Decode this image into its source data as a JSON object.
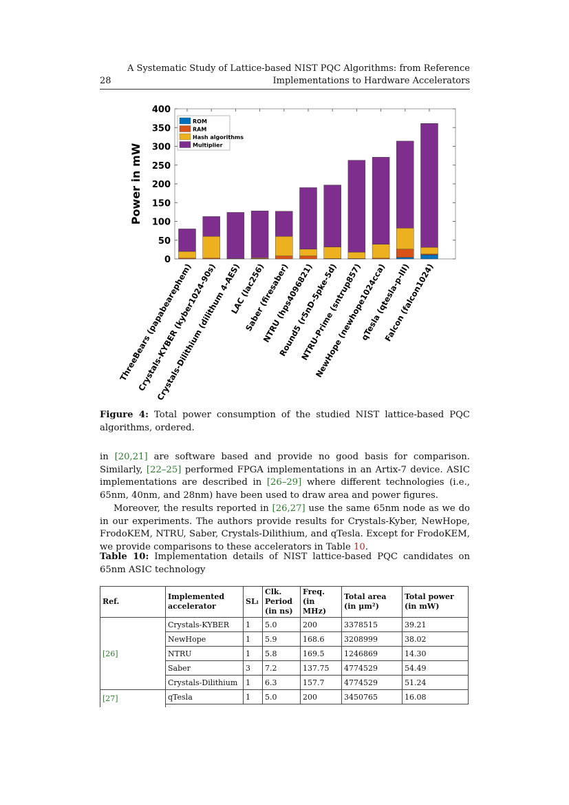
{
  "header": {
    "page_number": "28",
    "title_line1": "A Systematic Study of Lattice-based NIST PQC Algorithms: from Reference",
    "title_line2": "Implementations to Hardware Accelerators"
  },
  "chart_data": {
    "type": "bar",
    "stacked": true,
    "ylabel": "Power in mW",
    "ylim": [
      0,
      400
    ],
    "yticks": [
      0,
      50,
      100,
      150,
      200,
      250,
      300,
      350,
      400
    ],
    "legend_position": "top-left",
    "grid": false,
    "categories": [
      "ThreeBears (papabearephem)",
      "Crystals-KYBER (kyber1024-90s)",
      "Crystals-Dilithium (dilithum 4-AES)",
      "LAC (lac256)",
      "Saber (firesaber)",
      "NTRU (hps4096821)",
      "Round5 (r5nD-5pke-5d)",
      "NTRU-Prime (sntrup857)",
      "NewHope (newhope1024cca)",
      "qTesla (qtesla-p-III)",
      "Falcon (falcon1024)"
    ],
    "series": [
      {
        "name": "ROM",
        "color": "#0072BD",
        "values": [
          0,
          0,
          0,
          0,
          0,
          0,
          0,
          0,
          0,
          4,
          11
        ]
      },
      {
        "name": "RAM",
        "color": "#D95319",
        "values": [
          2,
          2,
          0,
          1,
          8,
          8,
          1,
          1,
          2,
          22,
          2
        ]
      },
      {
        "name": "Hash algorithms",
        "color": "#EDB120",
        "values": [
          18,
          58,
          1,
          2,
          52,
          18,
          31,
          17,
          37,
          56,
          18
        ]
      },
      {
        "name": "Multiplier",
        "color": "#7E2F8E",
        "values": [
          60,
          53,
          123,
          125,
          67,
          164,
          165,
          245,
          232,
          232,
          330
        ]
      }
    ]
  },
  "figure_caption": {
    "label": "Figure 4:",
    "text": " Total power consumption of the studied NIST lattice-based PQC algorithms, ordered."
  },
  "para1": {
    "t1": "in ",
    "c1": "[20,21]",
    "t2": " are software based and provide no good basis for comparison. Similarly, ",
    "c2": "[22–25]",
    "t3": " performed FPGA implementations in an Artix-7 device. ASIC implementations are described in ",
    "c3": "[26–29]",
    "t4": " where different technologies (i.e., 65nm, 40nm, and 28nm) have been used to draw area and power figures."
  },
  "para2": {
    "t1": "Moreover, the results reported in ",
    "c1": "[26,27]",
    "t2": " use the same 65nm node as we do in our experiments. The authors provide results for Crystals-Kyber, NewHope, FrodoKEM, NTRU, Saber, Crystals-Dilithium, and qTesla. Except for FrodoKEM, we provide comparisons to these accelerators in Table ",
    "c2": "10",
    "t3": "."
  },
  "table_caption": {
    "label": "Table 10:",
    "text": " Implementation details of NIST lattice-based PQC candidates on 65nm ASIC technology"
  },
  "table": {
    "headers": [
      "Ref.",
      "Implemented accelerator",
      "SLₗ",
      "Clk. Period (in ns)",
      "Freq. (in MHz)",
      "Total area (in μm²)",
      "Total power (in mW)"
    ],
    "groups": [
      {
        "ref": "[26]",
        "rows": [
          [
            "Crystals-KYBER",
            "1",
            "5.0",
            "200",
            "3378515",
            "39.21"
          ],
          [
            "NewHope",
            "1",
            "5.9",
            "168.6",
            "3208999",
            "38.02"
          ],
          [
            "NTRU",
            "1",
            "5.8",
            "169.5",
            "1246869",
            "14.30"
          ],
          [
            "Saber",
            "3",
            "7.2",
            "137.75",
            "4774529",
            "54.49"
          ],
          [
            "Crystals-Dilithium",
            "1",
            "6.3",
            "157.7",
            "4774529",
            "51.24"
          ]
        ]
      },
      {
        "ref": "[27]",
        "rows": [
          [
            "qTesla",
            "1",
            "5.0",
            "200",
            "3450765",
            "16.08"
          ]
        ]
      }
    ]
  }
}
